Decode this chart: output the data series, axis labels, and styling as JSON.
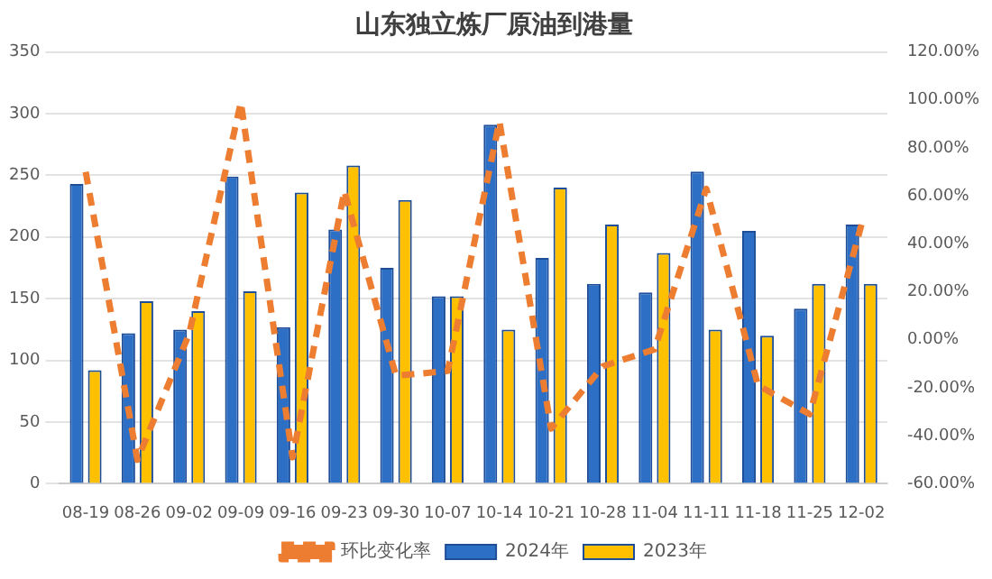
{
  "chart_data": {
    "type": "bar",
    "title": "山东独立炼厂原油到港量",
    "categories": [
      "08-19",
      "08-26",
      "09-02",
      "09-09",
      "09-16",
      "09-23",
      "09-30",
      "10-07",
      "10-14",
      "10-21",
      "10-28",
      "11-04",
      "11-11",
      "11-18",
      "11-25",
      "12-02"
    ],
    "series": [
      {
        "name": "2024年",
        "color": "#2e6fc6",
        "values": [
          243,
          122,
          125,
          249,
          127,
          206,
          175,
          152,
          291,
          183,
          162,
          155,
          253,
          205,
          142,
          210
        ]
      },
      {
        "name": "2023年",
        "color": "#ffc000",
        "values": [
          92,
          148,
          140,
          156,
          236,
          258,
          230,
          152,
          125,
          240,
          210,
          187,
          125,
          120,
          162,
          162
        ]
      },
      {
        "name": "环比变化率",
        "type": "line",
        "axis": "y2",
        "color": "#ed7d31",
        "line_style": "dashed",
        "marker": "none",
        "values": [
          70,
          -50,
          2.5,
          99,
          -49,
          62,
          -15,
          -13,
          91,
          -37,
          -11,
          -4,
          63,
          -19,
          -31,
          48
        ]
      }
    ],
    "ylim": [
      0,
      350
    ],
    "yticks": [
      0,
      50,
      100,
      150,
      200,
      250,
      300,
      350
    ],
    "y2lim": [
      -60,
      120
    ],
    "y2ticks": [
      {
        "value": -60,
        "label": "-60.00%"
      },
      {
        "value": -40,
        "label": "-40.00%"
      },
      {
        "value": -20,
        "label": "-20.00%"
      },
      {
        "value": 0,
        "label": "0.00%"
      },
      {
        "value": 20,
        "label": "20.00%"
      },
      {
        "value": 40,
        "label": "40.00%"
      },
      {
        "value": 60,
        "label": "60.00%"
      },
      {
        "value": 80,
        "label": "80.00%"
      },
      {
        "value": 100,
        "label": "100.00%"
      },
      {
        "value": 120,
        "label": "120.00%"
      }
    ],
    "grid": "y",
    "legend": "bottom"
  }
}
